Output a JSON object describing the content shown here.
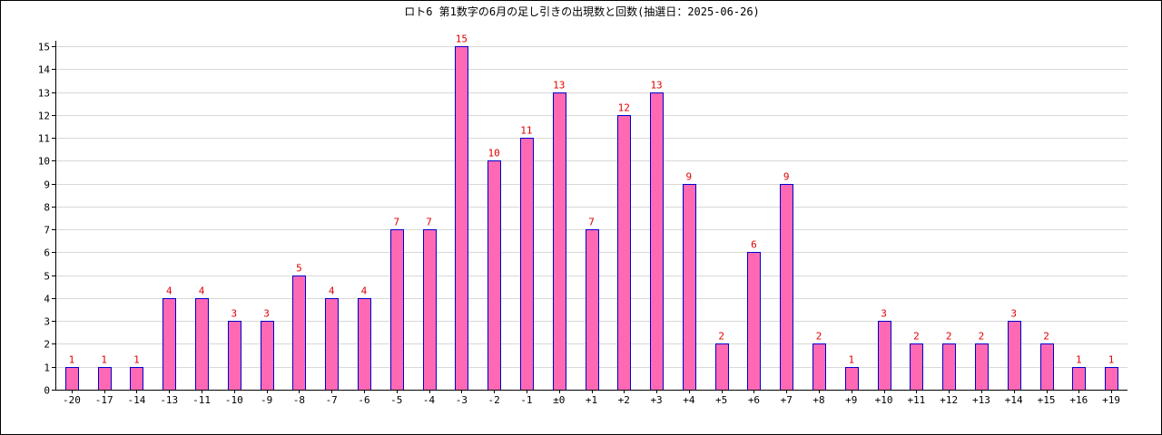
{
  "chart_data": {
    "type": "bar",
    "title": "ロト6 第1数字の6月の足し引きの出現数と回数(抽選日：2025-06-26)",
    "xlabel": "",
    "ylabel": "",
    "ylim": [
      0,
      15
    ],
    "yticks": [
      0,
      1,
      2,
      3,
      4,
      5,
      6,
      7,
      8,
      9,
      10,
      11,
      12,
      13,
      14,
      15
    ],
    "grid": true,
    "categories": [
      "-20",
      "-17",
      "-14",
      "-13",
      "-11",
      "-10",
      "-9",
      "-8",
      "-7",
      "-6",
      "-5",
      "-4",
      "-3",
      "-2",
      "-1",
      "±0",
      "+1",
      "+2",
      "+3",
      "+4",
      "+5",
      "+6",
      "+7",
      "+8",
      "+9",
      "+10",
      "+11",
      "+12",
      "+13",
      "+14",
      "+15",
      "+16",
      "+19"
    ],
    "values": [
      1,
      1,
      1,
      4,
      4,
      3,
      3,
      5,
      4,
      4,
      7,
      7,
      15,
      10,
      11,
      13,
      7,
      12,
      13,
      9,
      2,
      6,
      9,
      2,
      1,
      3,
      2,
      2,
      2,
      3,
      2,
      1,
      1
    ],
    "colors": {
      "bar_fill": "#ff69b4",
      "bar_stroke": "#0000cc",
      "data_label": "#e00000",
      "grid": "#d8d8d8"
    }
  }
}
